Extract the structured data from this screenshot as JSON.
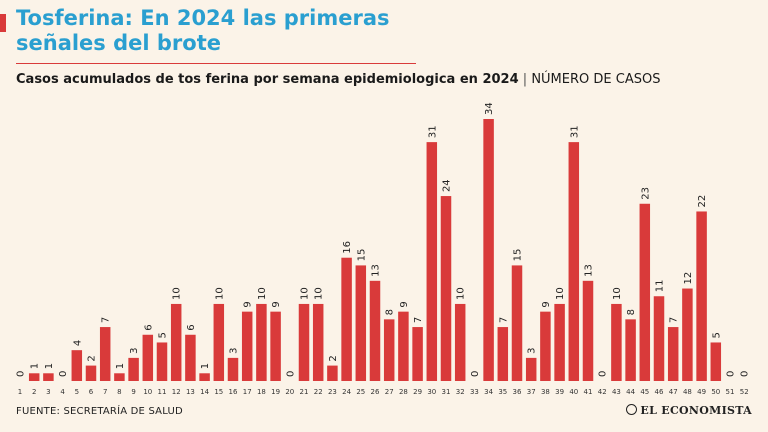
{
  "header": {
    "title": "Tosferina: En 2024 las primeras señales del brote",
    "subtitle": "Casos acumulados de tos ferina por semana epidemiologica en 2024",
    "separator": "|",
    "unit": "NÚMERO DE CASOS"
  },
  "footer": {
    "source": "FUENTE: SECRETARÍA DE SALUD",
    "logo": "EL ECONOMISTA"
  },
  "colors": {
    "bar": "#d93a3a",
    "title": "#2a9fd0",
    "background": "#fbf3e8"
  },
  "chart_data": {
    "type": "bar",
    "title": "Casos acumulados de tos ferina por semana epidemiologica en 2024",
    "xlabel": "",
    "ylabel": "NÚMERO DE CASOS",
    "ylim": [
      0,
      34
    ],
    "grid": false,
    "categories": [
      "1",
      "2",
      "3",
      "4",
      "5",
      "6",
      "7",
      "8",
      "9",
      "10",
      "11",
      "12",
      "13",
      "14",
      "15",
      "16",
      "17",
      "18",
      "19",
      "20",
      "21",
      "22",
      "23",
      "24",
      "25",
      "26",
      "27",
      "28",
      "29",
      "30",
      "31",
      "32",
      "33",
      "34",
      "35",
      "36",
      "37",
      "38",
      "39",
      "40",
      "41",
      "42",
      "43",
      "44",
      "45",
      "46",
      "47",
      "48",
      "49",
      "50",
      "51",
      "52"
    ],
    "values": [
      0,
      1,
      1,
      0,
      4,
      2,
      7,
      1,
      3,
      6,
      5,
      10,
      6,
      1,
      10,
      3,
      9,
      10,
      9,
      0,
      10,
      10,
      2,
      16,
      15,
      13,
      8,
      9,
      7,
      31,
      24,
      10,
      0,
      34,
      7,
      15,
      3,
      9,
      10,
      31,
      13,
      0,
      10,
      8,
      23,
      11,
      7,
      12,
      22,
      5,
      0,
      0
    ]
  }
}
